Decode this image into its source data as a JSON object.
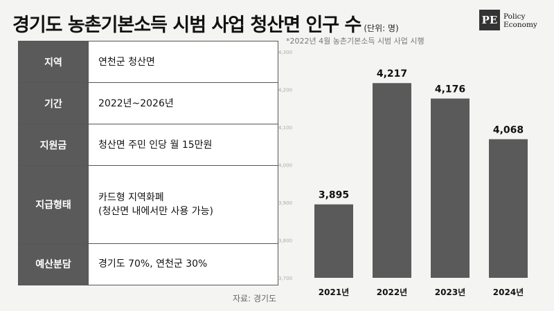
{
  "header": {
    "title": "경기도 농촌기본소득 시범 사업  청산면 인구 수",
    "unit": "(단위: 명)",
    "note": "*2022년 4월 농촌기본소득 시범 사업 시행"
  },
  "logo": {
    "mark": "PE",
    "line1": "Policy",
    "line2": "Economy"
  },
  "table": {
    "rows": [
      {
        "key": "지역",
        "value": "연천군 청산면"
      },
      {
        "key": "기간",
        "value": "2022년~2026년"
      },
      {
        "key": "지원금",
        "value": "청산면 주민 인당 월 15만원"
      },
      {
        "key": "지급형태",
        "value": "카드형 지역화폐",
        "value2": "(청산면 내에서만 사용 가능)"
      },
      {
        "key": "예산분담",
        "value": "경기도 70%, 연천군 30%"
      }
    ]
  },
  "source": "자료: 경기도",
  "chart_data": {
    "type": "bar",
    "categories": [
      "2021년",
      "2022년",
      "2023년",
      "2024년"
    ],
    "values": [
      3895,
      4217,
      4176,
      4068
    ],
    "value_labels": [
      "3,895",
      "4,217",
      "4,176",
      "4,068"
    ],
    "ylim": [
      3700,
      4300
    ],
    "yticks": [
      3700,
      3800,
      3900,
      4000,
      4100,
      4200,
      4300
    ],
    "ytick_labels": [
      "3,700",
      "3,800",
      "3,900",
      "4,000",
      "4,100",
      "4,200",
      "4,300"
    ],
    "bar_color": "#5a5a5a",
    "grid": false
  }
}
